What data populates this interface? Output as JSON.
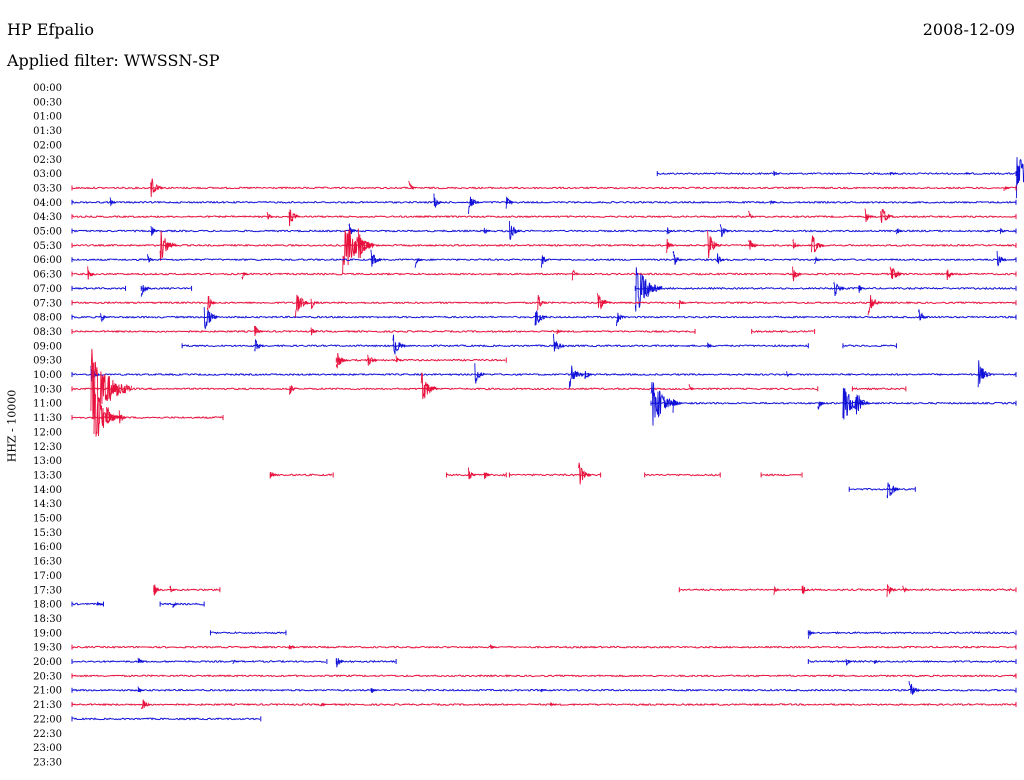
{
  "header": {
    "station": "HP Efpalio",
    "date": "2008-12-09",
    "filter": "Applied filter: WWSSN-SP",
    "channel": "HHZ - 10000"
  },
  "colors": {
    "trace_a": "#e8103c",
    "trace_b": "#1010d8"
  },
  "chart_data": {
    "type": "line",
    "title": "HP Efpalio",
    "ylabel": "HHZ - 10000",
    "x_unit": "minutes within row",
    "x_range": [
      0,
      30
    ],
    "rows": [
      {
        "label": "00:00",
        "color": "red",
        "segments": []
      },
      {
        "label": "00:30",
        "color": "blue",
        "segments": []
      },
      {
        "label": "01:00",
        "color": "red",
        "segments": []
      },
      {
        "label": "01:30",
        "color": "blue",
        "segments": []
      },
      {
        "label": "02:00",
        "color": "red",
        "segments": []
      },
      {
        "label": "02:30",
        "color": "blue",
        "segments": []
      },
      {
        "label": "03:00",
        "color": "blue",
        "segments": [
          [
            18.6,
            30
          ]
        ],
        "events": [
          [
            22.3,
            4
          ],
          [
            26,
            3
          ],
          [
            28.4,
            1
          ],
          [
            30,
            26
          ]
        ]
      },
      {
        "label": "03:30",
        "color": "red",
        "segments": [
          [
            0,
            30
          ]
        ],
        "events": [
          [
            2.5,
            14
          ],
          [
            10.7,
            8
          ],
          [
            29.6,
            6
          ]
        ]
      },
      {
        "label": "04:00",
        "color": "blue",
        "segments": [
          [
            0,
            30
          ]
        ],
        "events": [
          [
            1.2,
            6
          ],
          [
            11.5,
            9
          ],
          [
            12.6,
            12
          ],
          [
            13.8,
            8
          ],
          [
            22.2,
            3
          ]
        ]
      },
      {
        "label": "04:30",
        "color": "red",
        "segments": [
          [
            0,
            30
          ]
        ],
        "events": [
          [
            6.2,
            6
          ],
          [
            6.9,
            12
          ],
          [
            21.5,
            6
          ],
          [
            25.2,
            9
          ],
          [
            25.7,
            14
          ]
        ]
      },
      {
        "label": "05:00",
        "color": "blue",
        "segments": [
          [
            0,
            30
          ]
        ],
        "events": [
          [
            2.5,
            8
          ],
          [
            8.8,
            9
          ],
          [
            13.1,
            4
          ],
          [
            13.9,
            12
          ],
          [
            18.9,
            6
          ],
          [
            20.6,
            10
          ],
          [
            26.2,
            5
          ],
          [
            29.5,
            4
          ]
        ]
      },
      {
        "label": "05:30",
        "color": "red",
        "segments": [
          [
            0,
            30
          ]
        ],
        "events": [
          [
            2.8,
            18
          ],
          [
            8.6,
            34
          ],
          [
            9.1,
            18
          ],
          [
            18.9,
            8
          ],
          [
            20.2,
            16
          ],
          [
            21.5,
            10
          ],
          [
            22.9,
            8
          ],
          [
            23.5,
            14
          ]
        ]
      },
      {
        "label": "06:00",
        "color": "blue",
        "segments": [
          [
            0,
            30
          ]
        ],
        "events": [
          [
            2.4,
            6
          ],
          [
            9.5,
            12
          ],
          [
            10.9,
            8
          ],
          [
            14.9,
            9
          ],
          [
            19.1,
            10
          ],
          [
            20.5,
            8
          ],
          [
            23.6,
            5
          ],
          [
            29.4,
            10
          ]
        ]
      },
      {
        "label": "06:30",
        "color": "red",
        "segments": [
          [
            0,
            30
          ]
        ],
        "events": [
          [
            0.5,
            8
          ],
          [
            5.4,
            6
          ],
          [
            15.9,
            7
          ],
          [
            22.9,
            10
          ],
          [
            26,
            14
          ],
          [
            27.8,
            8
          ]
        ]
      },
      {
        "label": "07:00",
        "color": "blue",
        "segments": [
          [
            0,
            1.7
          ],
          [
            2.2,
            3.8
          ],
          [
            17.9,
            30
          ]
        ],
        "events": [
          [
            2.2,
            10
          ],
          [
            17.9,
            30
          ],
          [
            18.3,
            9
          ],
          [
            24.2,
            12
          ],
          [
            25,
            6
          ]
        ]
      },
      {
        "label": "07:30",
        "color": "red",
        "segments": [
          [
            0,
            30
          ]
        ],
        "events": [
          [
            4.3,
            10
          ],
          [
            7.1,
            16
          ],
          [
            7.6,
            8
          ],
          [
            14.8,
            10
          ],
          [
            16.7,
            14
          ],
          [
            19.3,
            6
          ],
          [
            25.3,
            14
          ]
        ]
      },
      {
        "label": "08:00",
        "color": "blue",
        "segments": [
          [
            0,
            30
          ]
        ],
        "events": [
          [
            0.9,
            8
          ],
          [
            4.2,
            16
          ],
          [
            14.7,
            14
          ],
          [
            17.3,
            10
          ],
          [
            26.9,
            10
          ]
        ]
      },
      {
        "label": "08:30",
        "color": "red",
        "segments": [
          [
            0,
            19.8
          ],
          [
            21.6,
            23.6
          ]
        ],
        "events": [
          [
            5.8,
            8
          ],
          [
            7.6,
            6
          ],
          [
            15.4,
            3
          ]
        ]
      },
      {
        "label": "09:00",
        "color": "blue",
        "segments": [
          [
            3.5,
            23.4
          ],
          [
            24.5,
            26.2
          ]
        ],
        "events": [
          [
            5.8,
            10
          ],
          [
            10.2,
            14
          ],
          [
            15.3,
            12
          ],
          [
            20.2,
            4
          ]
        ]
      },
      {
        "label": "09:30",
        "color": "red",
        "segments": [
          [
            8.4,
            13.8
          ]
        ],
        "events": [
          [
            8.4,
            12
          ],
          [
            9.4,
            10
          ],
          [
            10.3,
            6
          ]
        ]
      },
      {
        "label": "10:00",
        "color": "blue",
        "segments": [
          [
            0,
            30
          ]
        ],
        "events": [
          [
            0.6,
            10
          ],
          [
            12.8,
            12
          ],
          [
            15.8,
            16
          ],
          [
            16.3,
            8
          ],
          [
            22.7,
            4
          ],
          [
            28.8,
            16
          ]
        ]
      },
      {
        "label": "10:30",
        "color": "red",
        "segments": [
          [
            0,
            23.7
          ],
          [
            24.8,
            26.5
          ]
        ],
        "events": [
          [
            0.6,
            46
          ],
          [
            6.9,
            8
          ],
          [
            11.1,
            18
          ],
          [
            19.6,
            6
          ]
        ]
      },
      {
        "label": "11:00",
        "color": "blue",
        "segments": [
          [
            18.4,
            30
          ]
        ],
        "events": [
          [
            18.4,
            30
          ],
          [
            19.1,
            10
          ],
          [
            23.7,
            8
          ],
          [
            24.5,
            24
          ],
          [
            24.9,
            16
          ]
        ]
      },
      {
        "label": "11:30",
        "color": "red",
        "segments": [
          [
            0,
            4.8
          ]
        ],
        "events": [
          [
            0.7,
            30
          ],
          [
            1.1,
            14
          ],
          [
            1.5,
            8
          ]
        ]
      },
      {
        "label": "12:00",
        "color": "blue",
        "segments": []
      },
      {
        "label": "12:30",
        "color": "red",
        "segments": []
      },
      {
        "label": "13:00",
        "color": "blue",
        "segments": []
      },
      {
        "label": "13:30",
        "color": "red",
        "segments": [
          [
            6.3,
            8.3
          ],
          [
            11.9,
            13.8
          ],
          [
            13.9,
            16.8
          ],
          [
            18.2,
            20.6
          ],
          [
            21.9,
            23.2
          ]
        ],
        "events": [
          [
            6.3,
            6
          ],
          [
            12.6,
            8
          ],
          [
            13.1,
            6
          ],
          [
            16.1,
            14
          ]
        ]
      },
      {
        "label": "14:00",
        "color": "blue",
        "segments": [
          [
            24.7,
            26.8
          ]
        ],
        "events": [
          [
            25.9,
            14
          ]
        ]
      },
      {
        "label": "14:30",
        "color": "red",
        "segments": []
      },
      {
        "label": "15:00",
        "color": "blue",
        "segments": []
      },
      {
        "label": "15:30",
        "color": "red",
        "segments": []
      },
      {
        "label": "16:00",
        "color": "blue",
        "segments": []
      },
      {
        "label": "16:30",
        "color": "red",
        "segments": []
      },
      {
        "label": "17:00",
        "color": "blue",
        "segments": []
      },
      {
        "label": "17:30",
        "color": "red",
        "segments": [
          [
            2.6,
            4.7
          ],
          [
            19.3,
            30
          ]
        ],
        "events": [
          [
            2.6,
            8
          ],
          [
            3.1,
            6
          ],
          [
            22.3,
            5
          ],
          [
            23.2,
            8
          ],
          [
            25.9,
            10
          ],
          [
            26.4,
            6
          ]
        ]
      },
      {
        "label": "18:00",
        "color": "blue",
        "segments": [
          [
            0,
            1.0
          ],
          [
            2.8,
            4.2
          ]
        ],
        "events": [
          [
            0.8,
            4
          ],
          [
            3.2,
            5
          ]
        ]
      },
      {
        "label": "18:30",
        "color": "red",
        "segments": []
      },
      {
        "label": "19:00",
        "color": "blue",
        "segments": [
          [
            4.4,
            6.8
          ],
          [
            23.4,
            30
          ]
        ],
        "events": [
          [
            23.4,
            6
          ]
        ]
      },
      {
        "label": "19:30",
        "color": "red",
        "segments": [
          [
            0,
            30
          ]
        ],
        "events": [
          [
            6.9,
            6
          ],
          [
            13.3,
            3
          ]
        ]
      },
      {
        "label": "20:00",
        "color": "blue",
        "segments": [
          [
            0,
            8.1
          ],
          [
            8.4,
            10.3
          ],
          [
            23.4,
            30
          ]
        ],
        "events": [
          [
            2.1,
            6
          ],
          [
            5.1,
            3
          ],
          [
            8.4,
            8
          ],
          [
            24.6,
            6
          ],
          [
            25.5,
            4
          ]
        ]
      },
      {
        "label": "20:30",
        "color": "red",
        "segments": [
          [
            0,
            30
          ]
        ],
        "events": []
      },
      {
        "label": "21:00",
        "color": "blue",
        "segments": [
          [
            0,
            30
          ]
        ],
        "events": [
          [
            2.1,
            4
          ],
          [
            9.5,
            5
          ],
          [
            14.9,
            3
          ],
          [
            26.6,
            12
          ]
        ]
      },
      {
        "label": "21:30",
        "color": "red",
        "segments": [
          [
            0,
            30
          ]
        ],
        "events": [
          [
            2.2,
            10
          ],
          [
            7.9,
            4
          ],
          [
            15.2,
            3
          ]
        ]
      },
      {
        "label": "22:00",
        "color": "blue",
        "segments": [
          [
            0,
            6.0
          ]
        ],
        "events": []
      },
      {
        "label": "22:30",
        "color": "red",
        "segments": []
      },
      {
        "label": "23:00",
        "color": "blue",
        "segments": []
      },
      {
        "label": "23:30",
        "color": "red",
        "segments": []
      }
    ]
  }
}
